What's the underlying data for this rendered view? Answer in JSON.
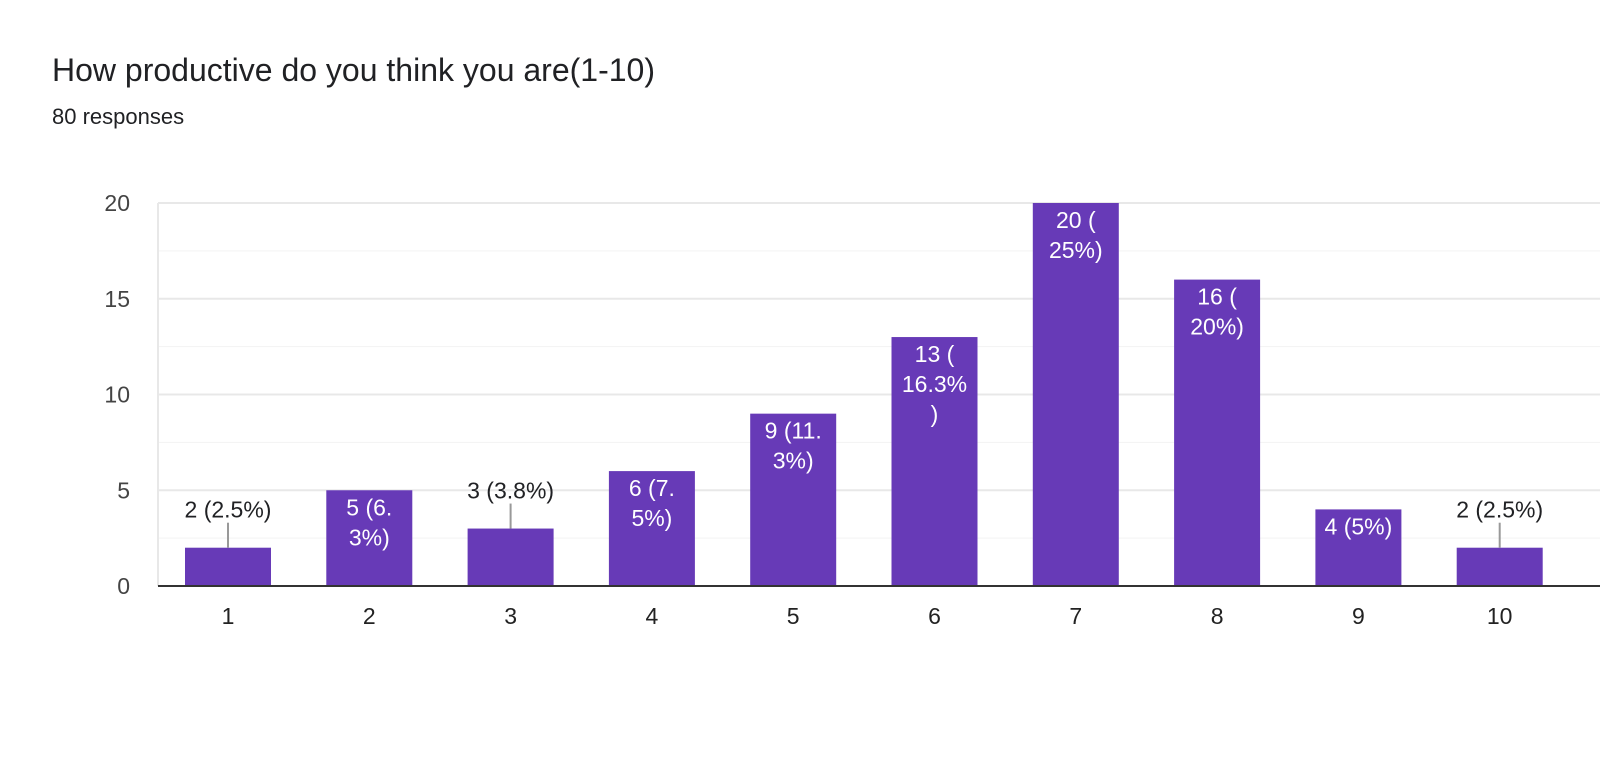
{
  "header": {
    "title": "How productive do you think you are(1-10)",
    "responses": "80 responses"
  },
  "colors": {
    "bar": "#673ab7",
    "grid": "#e8e8e8",
    "axis": "#333333",
    "label_light": "#ffffff",
    "label_dark": "#202124"
  },
  "chart_data": {
    "type": "bar",
    "title": "How productive do you think you are(1-10)",
    "subtitle": "80 responses",
    "categories": [
      "1",
      "2",
      "3",
      "4",
      "5",
      "6",
      "7",
      "8",
      "9",
      "10"
    ],
    "values": [
      2,
      5,
      3,
      6,
      9,
      13,
      20,
      16,
      4,
      2
    ],
    "labels": [
      [
        "2 (2.5%)"
      ],
      [
        "5 (6.",
        "3%)"
      ],
      [
        "3 (3.8%)"
      ],
      [
        "6 (7.",
        "5%)"
      ],
      [
        "9 (11.",
        "3%)"
      ],
      [
        "13 (",
        "16.3%",
        ")"
      ],
      [
        "20 (",
        "25%)"
      ],
      [
        "16 (",
        "20%)"
      ],
      [
        "4 (5%)"
      ],
      [
        "2 (2.5%)"
      ]
    ],
    "label_outside": [
      true,
      false,
      true,
      false,
      false,
      false,
      false,
      false,
      false,
      true
    ],
    "ylim": [
      0,
      20
    ],
    "yticks": [
      0,
      5,
      10,
      15,
      20
    ],
    "grid": true,
    "xlabel": "",
    "ylabel": ""
  }
}
